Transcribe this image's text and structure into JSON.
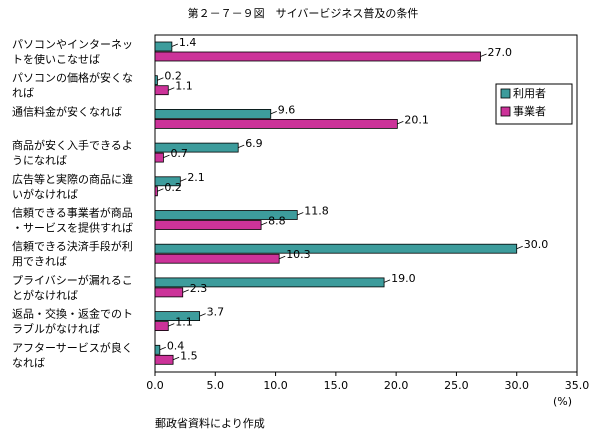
{
  "chart_data": {
    "type": "hbar",
    "title": "第２－７－９図　サイバービジネス普及の条件",
    "categories": [
      [
        "パソコンやインターネッ",
        "トを使いこなせば"
      ],
      [
        "パソコンの価格が安くな",
        "れば"
      ],
      [
        "通信料金が安くなれば"
      ],
      [
        "商品が安く入手できるよ",
        "うになれば"
      ],
      [
        "広告等と実際の商品に違",
        "いがなければ"
      ],
      [
        "信頼できる事業者が商品",
        "・サービスを提供すれば"
      ],
      [
        "信頼できる決済手段が利",
        "用できれば"
      ],
      [
        "プライバシーが漏れるこ",
        "とがなければ"
      ],
      [
        "返品・交換・返金でのト",
        "ラブルがなければ"
      ],
      [
        "アフターサービスが良く",
        "なれば"
      ]
    ],
    "series": [
      {
        "name": "利用者",
        "color": "#3d9c9c",
        "values": [
          1.4,
          0.2,
          9.6,
          6.9,
          2.1,
          11.8,
          30,
          19,
          3.7,
          0.4
        ],
        "value_labels": [
          "1.4",
          "0.2",
          "9.6",
          "6.9",
          "2.1",
          "11.8",
          "30.0",
          "19.0",
          "3.7",
          "0.4"
        ]
      },
      {
        "name": "事業者",
        "color": "#cc3399",
        "values": [
          27,
          1.1,
          20.1,
          0.7,
          0.2,
          8.8,
          10.3,
          2.3,
          1.1,
          1.5
        ],
        "value_labels": [
          "27.0",
          "1.1",
          "20.1",
          "0.7",
          "0.2",
          "8.8",
          "10.3",
          "2.3",
          "1.1",
          "1.5"
        ]
      }
    ],
    "xlim": [
      0,
      35
    ],
    "xticks": [
      {
        "value": 0,
        "label": "0.0"
      },
      {
        "value": 5,
        "label": "5.0"
      },
      {
        "value": 10,
        "label": "10.0"
      },
      {
        "value": 15,
        "label": "15.0"
      },
      {
        "value": 20,
        "label": "20.0"
      },
      {
        "value": 25,
        "label": "25.0"
      },
      {
        "value": 30,
        "label": "30.0"
      },
      {
        "value": 35,
        "label": "35.0"
      }
    ],
    "x_label": "(%)",
    "note": "郵政省資料により作成",
    "legend": "upper right"
  }
}
